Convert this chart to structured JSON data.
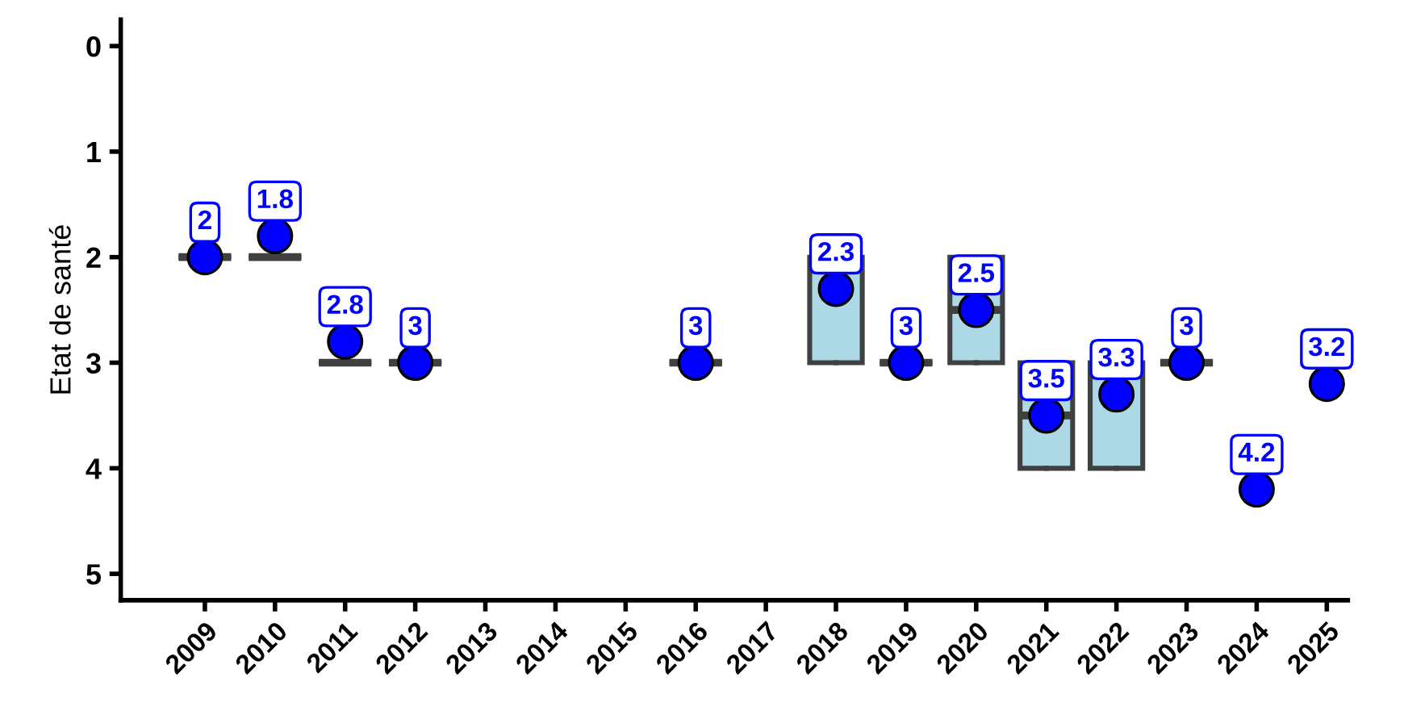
{
  "chart_data": {
    "type": "box",
    "ylabel": "Etat de santé",
    "categories": [
      "2009",
      "2010",
      "2011",
      "2012",
      "2013",
      "2014",
      "2015",
      "2016",
      "2017",
      "2018",
      "2019",
      "2020",
      "2021",
      "2022",
      "2023",
      "2024",
      "2025"
    ],
    "ylim": [
      5.25,
      -0.25
    ],
    "yticks": [
      0,
      1,
      2,
      3,
      4,
      5
    ],
    "grid": false,
    "data_labels": true,
    "series": [
      {
        "colors": [
          "#404040",
          "#404040",
          "#404040",
          "#404040",
          null,
          null,
          null,
          "#404040",
          null,
          "#add8e6",
          "#404040",
          "#add8e6",
          "#add8e6",
          "#add8e6",
          "#404040",
          "#404040",
          "#404040"
        ],
        "boxes": [
          {
            "low": 2,
            "q1": 2,
            "median": 2,
            "q3": 2,
            "high": 2
          },
          {
            "low": 2,
            "q1": 2,
            "median": 2,
            "q3": 2,
            "high": 2
          },
          {
            "low": 3,
            "q1": 3,
            "median": 3,
            "q3": 3,
            "high": 3
          },
          {
            "low": 3,
            "q1": 3,
            "median": 3,
            "q3": 3,
            "high": 3
          },
          null,
          null,
          null,
          {
            "low": 3,
            "q1": 3,
            "median": 3,
            "q3": 3,
            "high": 3
          },
          null,
          {
            "low": 2,
            "q1": 2,
            "median": 2,
            "q3": 3,
            "high": 3
          },
          {
            "low": 3,
            "q1": 3,
            "median": 3,
            "q3": 3,
            "high": 3
          },
          {
            "low": 2,
            "q1": 2,
            "median": 2.5,
            "q3": 3,
            "high": 3
          },
          {
            "low": 3,
            "q1": 3,
            "median": 3.5,
            "q3": 4,
            "high": 4
          },
          {
            "low": 3,
            "q1": 3,
            "median": 3,
            "q3": 4,
            "high": 4
          },
          {
            "low": 3,
            "q1": 3,
            "median": 3,
            "q3": 3,
            "high": 3
          },
          {
            "low": 4,
            "q1": 4,
            "median": 4,
            "q3": 4,
            "high": 4
          },
          {
            "low": 3,
            "q1": 3,
            "median": 3,
            "q3": 3,
            "high": 3
          }
        ]
      },
      {
        "type": "scatter",
        "color": "#0000ff",
        "marker": "circle",
        "values": [
          2,
          1.8,
          2.8,
          3,
          null,
          null,
          null,
          3,
          null,
          2.3,
          3,
          2.5,
          3.5,
          3.3,
          3,
          4.2,
          3.2
        ]
      }
    ]
  }
}
